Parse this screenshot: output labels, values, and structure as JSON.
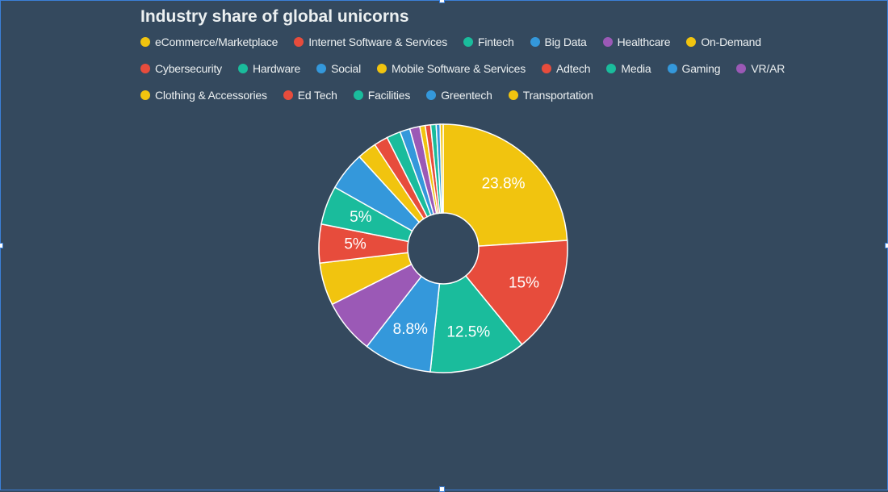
{
  "chart_data": {
    "type": "pie",
    "donut": true,
    "title": "Industry share of global unicorns",
    "legend_position": "top",
    "categories": [
      "eCommerce/Marketplace",
      "Internet Software & Services",
      "Fintech",
      "Big Data",
      "Healthcare",
      "On-Demand",
      "Cybersecurity",
      "Hardware",
      "Social",
      "Mobile Software & Services",
      "Adtech",
      "Media",
      "Gaming",
      "VR/AR",
      "Clothing & Accessories",
      "Ed Tech",
      "Facilities",
      "Greentech",
      "Transportation"
    ],
    "values": [
      23.8,
      15,
      12.5,
      8.8,
      7,
      5.5,
      5,
      5,
      5,
      2.5,
      1.8,
      1.8,
      1.3,
      1.3,
      0.7,
      0.7,
      0.7,
      0.5,
      0.4
    ],
    "labels": [
      "23.8%",
      "15%",
      "12.5%",
      "8.8%",
      "",
      "",
      "5%",
      "5%",
      "",
      "",
      "",
      "",
      "",
      "",
      "",
      "",
      "",
      "",
      ""
    ],
    "colors": [
      "#f1c40f",
      "#e74c3c",
      "#1abc9c",
      "#3498db",
      "#9b59b6",
      "#f1c40f",
      "#e74c3c",
      "#1abc9c",
      "#3498db",
      "#f1c40f",
      "#e74c3c",
      "#1abc9c",
      "#3498db",
      "#9b59b6",
      "#f1c40f",
      "#e74c3c",
      "#1abc9c",
      "#3498db",
      "#f1c40f"
    ]
  }
}
